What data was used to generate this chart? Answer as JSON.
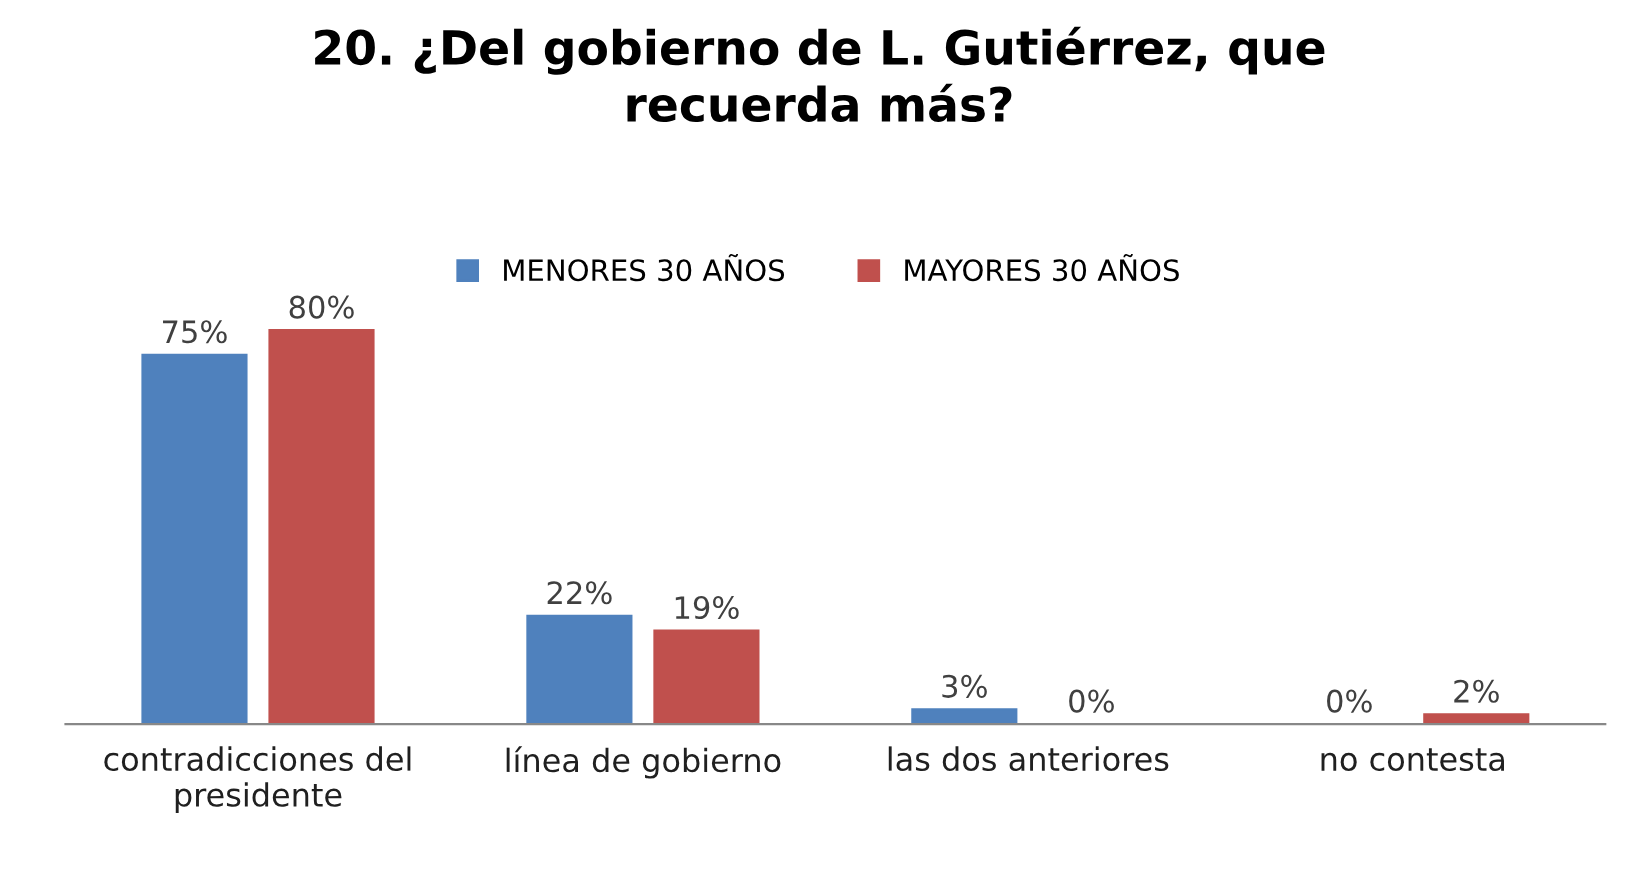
{
  "chart_data": {
    "type": "bar",
    "title": "20. ¿Del gobierno de L. Gutiérrez, que recuerda más?",
    "categories": [
      "contradicciones del presidente",
      "línea de gobierno",
      "las dos anteriores",
      "no contesta"
    ],
    "series": [
      {
        "name": "MENORES 30 AÑOS",
        "color": "#4f81bd",
        "values": [
          75,
          22,
          3,
          0
        ],
        "value_labels": [
          "75%",
          "22%",
          "3%",
          "0%"
        ]
      },
      {
        "name": "MAYORES 30 AÑOS",
        "color": "#c0504d",
        "values": [
          80,
          19,
          0,
          2
        ],
        "value_labels": [
          "80%",
          "19%",
          "0%",
          "2%"
        ]
      }
    ],
    "legend": "top",
    "grid": false
  }
}
